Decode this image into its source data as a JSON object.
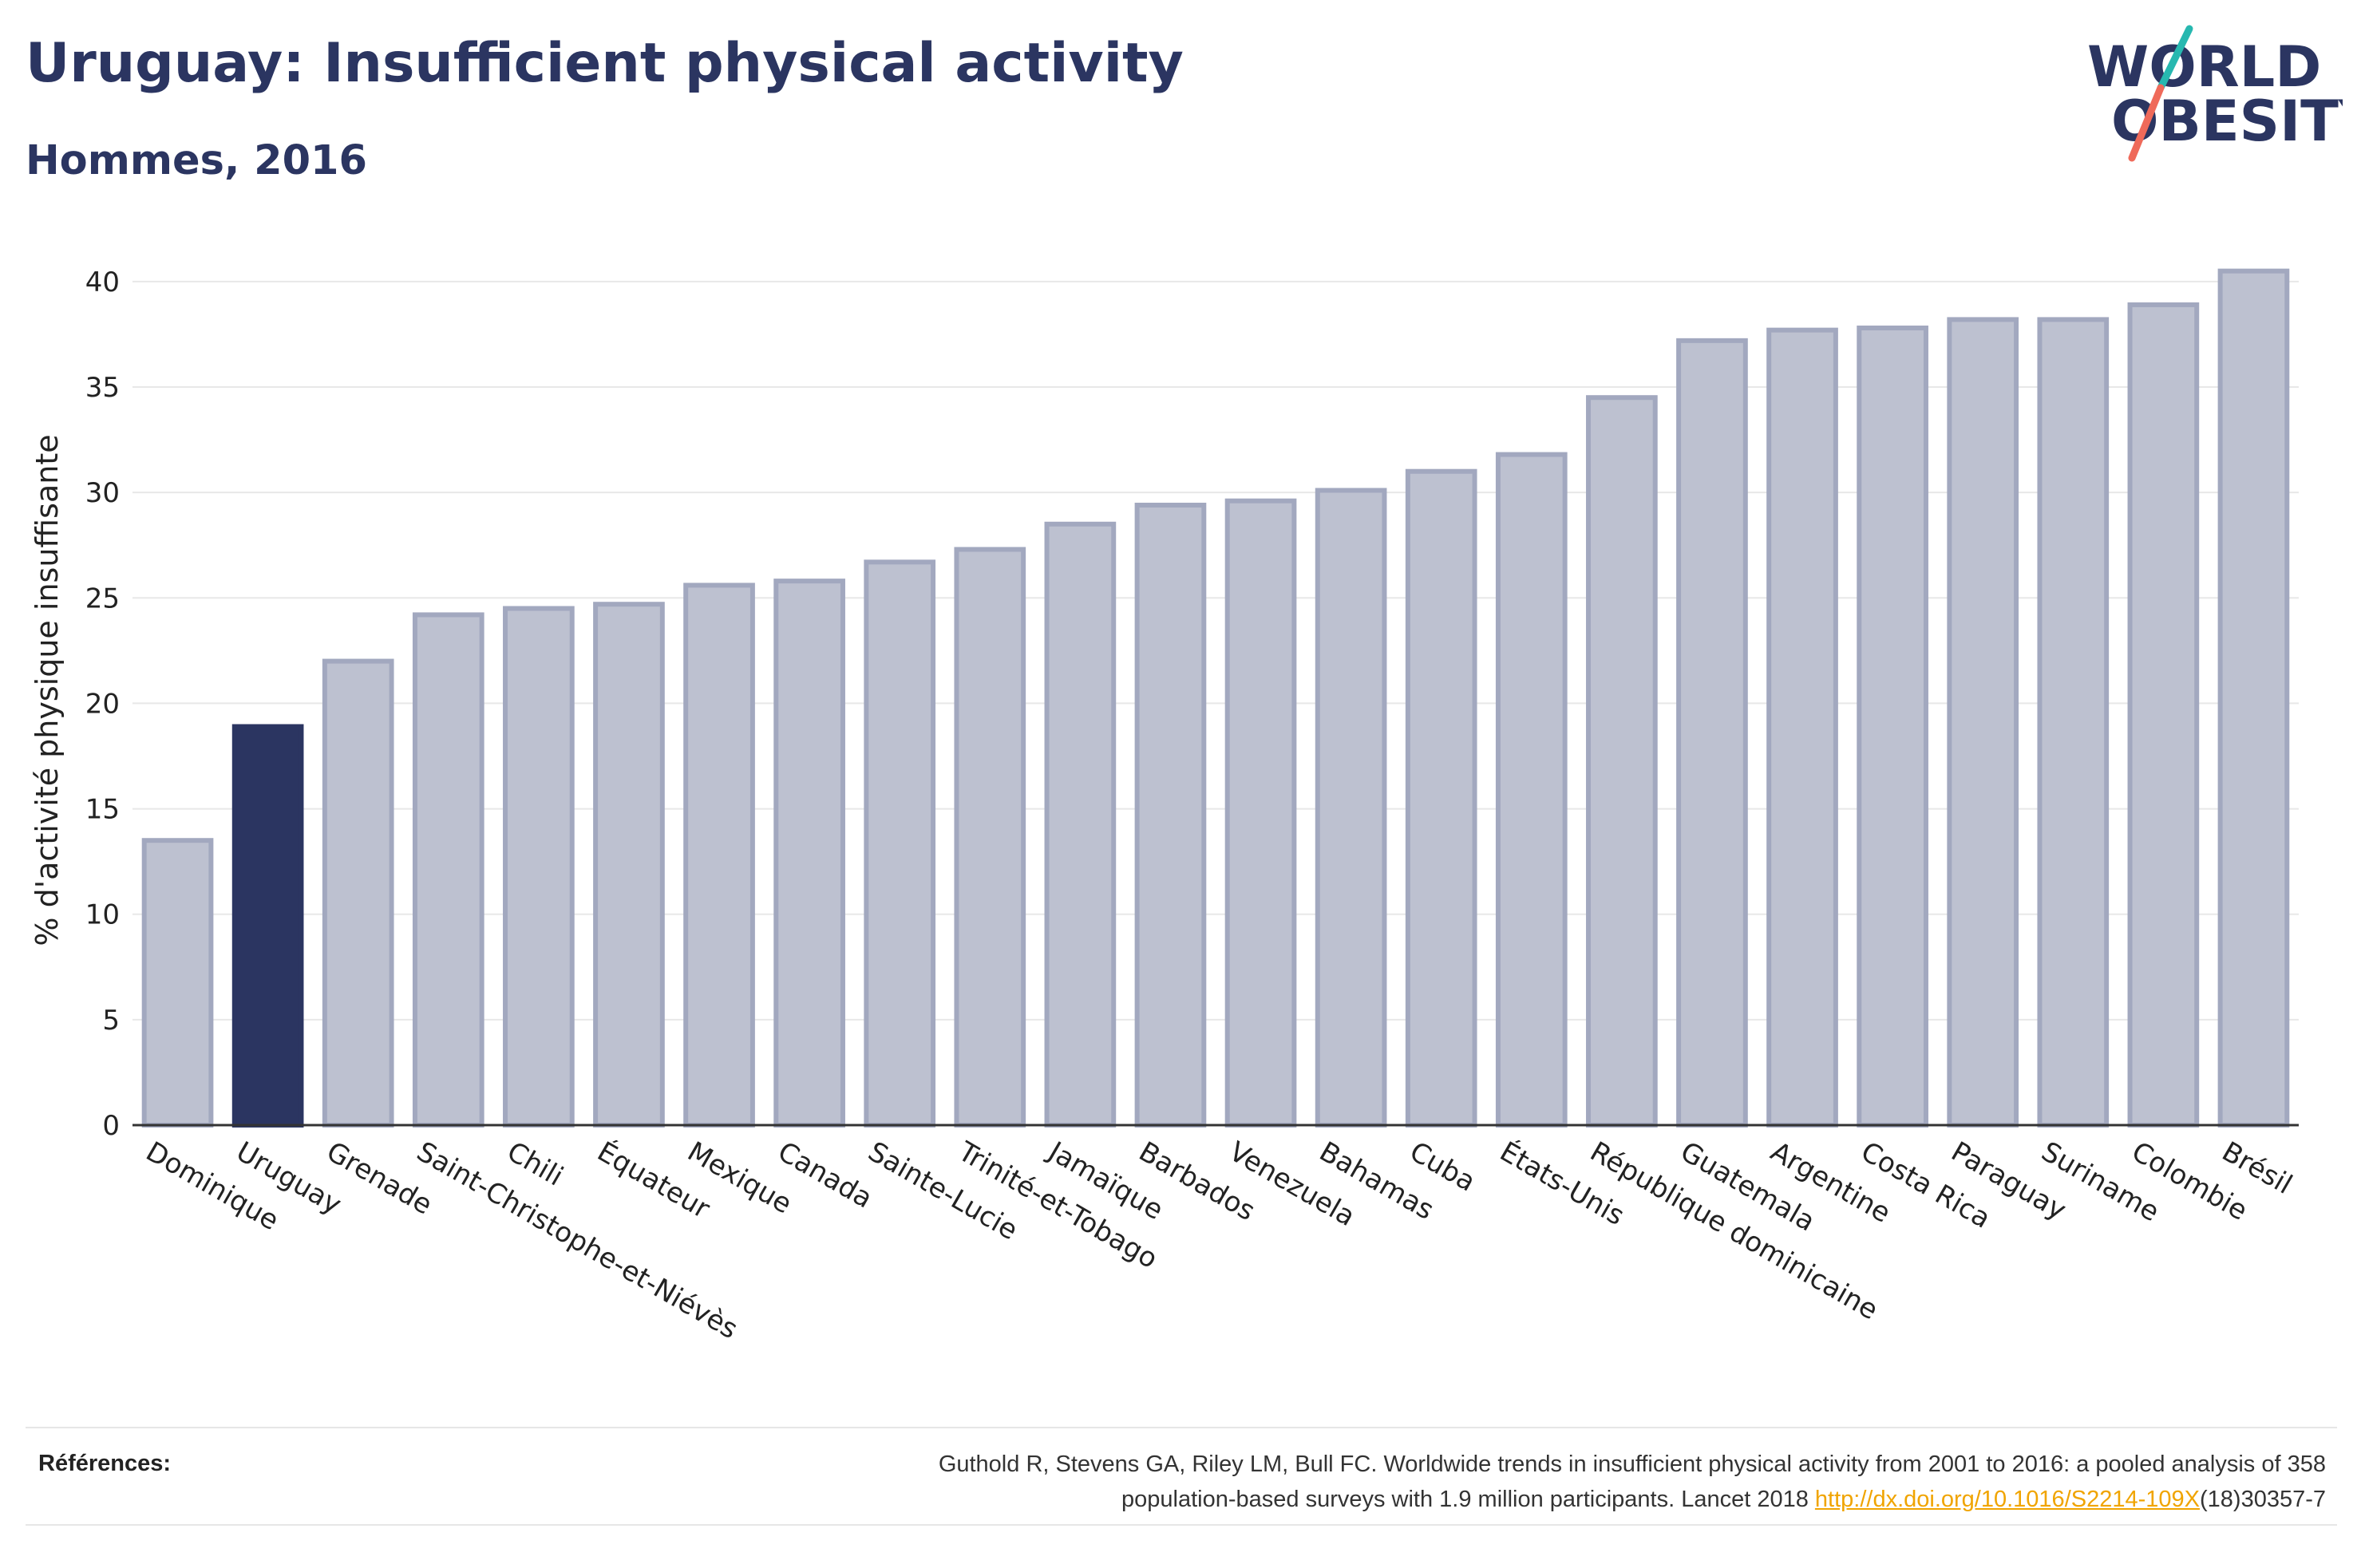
{
  "title": "Uruguay: Insufficient physical activity",
  "subtitle": "Hommes, 2016",
  "logo": {
    "line1": "WORLD",
    "line2": "OBESITY"
  },
  "references": {
    "label": "Références:",
    "line1": "Guthold R, Stevens GA, Riley LM, Bull FC. Worldwide trends in insufficient physical activity from 2001 to 2016: a pooled analysis of 358",
    "line2_prefix": "population-based surveys with 1.9 million participants. Lancet 2018 ",
    "link_text": "http://dx.doi.org/10.1016/S2214-109X",
    "line2_suffix": "(18)30357-7"
  },
  "colors": {
    "title": "#2b3561",
    "highlight": "#2b3561",
    "bar_fill": "#bdc1d0",
    "bar_stroke": "#a2a8bf",
    "link": "#f0a400",
    "logo_teal": "#27b8b0",
    "logo_coral": "#ef6a5a"
  },
  "chart_data": {
    "type": "bar",
    "ylabel": "% d'activité physique insuffisante",
    "xlabel": "",
    "ylim": [
      0,
      42
    ],
    "yticks": [
      0,
      5,
      10,
      15,
      20,
      25,
      30,
      35,
      40
    ],
    "grid": true,
    "highlight": "Uruguay",
    "categories": [
      "Dominique",
      "Uruguay",
      "Grenade",
      "Saint-Christophe-et-Niévès",
      "Chili",
      "Équateur",
      "Mexique",
      "Canada",
      "Sainte-Lucie",
      "Trinité-et-Tobago",
      "Jamaïque",
      "Barbados",
      "Venezuela",
      "Bahamas",
      "Cuba",
      "États-Unis",
      "République dominicaine",
      "Guatemala",
      "Argentine",
      "Costa Rica",
      "Paraguay",
      "Suriname",
      "Colombie",
      "Brésil"
    ],
    "values": [
      13.5,
      18.9,
      22.0,
      24.2,
      24.5,
      24.7,
      25.6,
      25.8,
      26.7,
      27.3,
      28.5,
      29.4,
      29.6,
      30.1,
      31.0,
      31.8,
      34.5,
      37.2,
      37.7,
      37.8,
      38.2,
      38.2,
      38.9,
      40.5
    ]
  }
}
